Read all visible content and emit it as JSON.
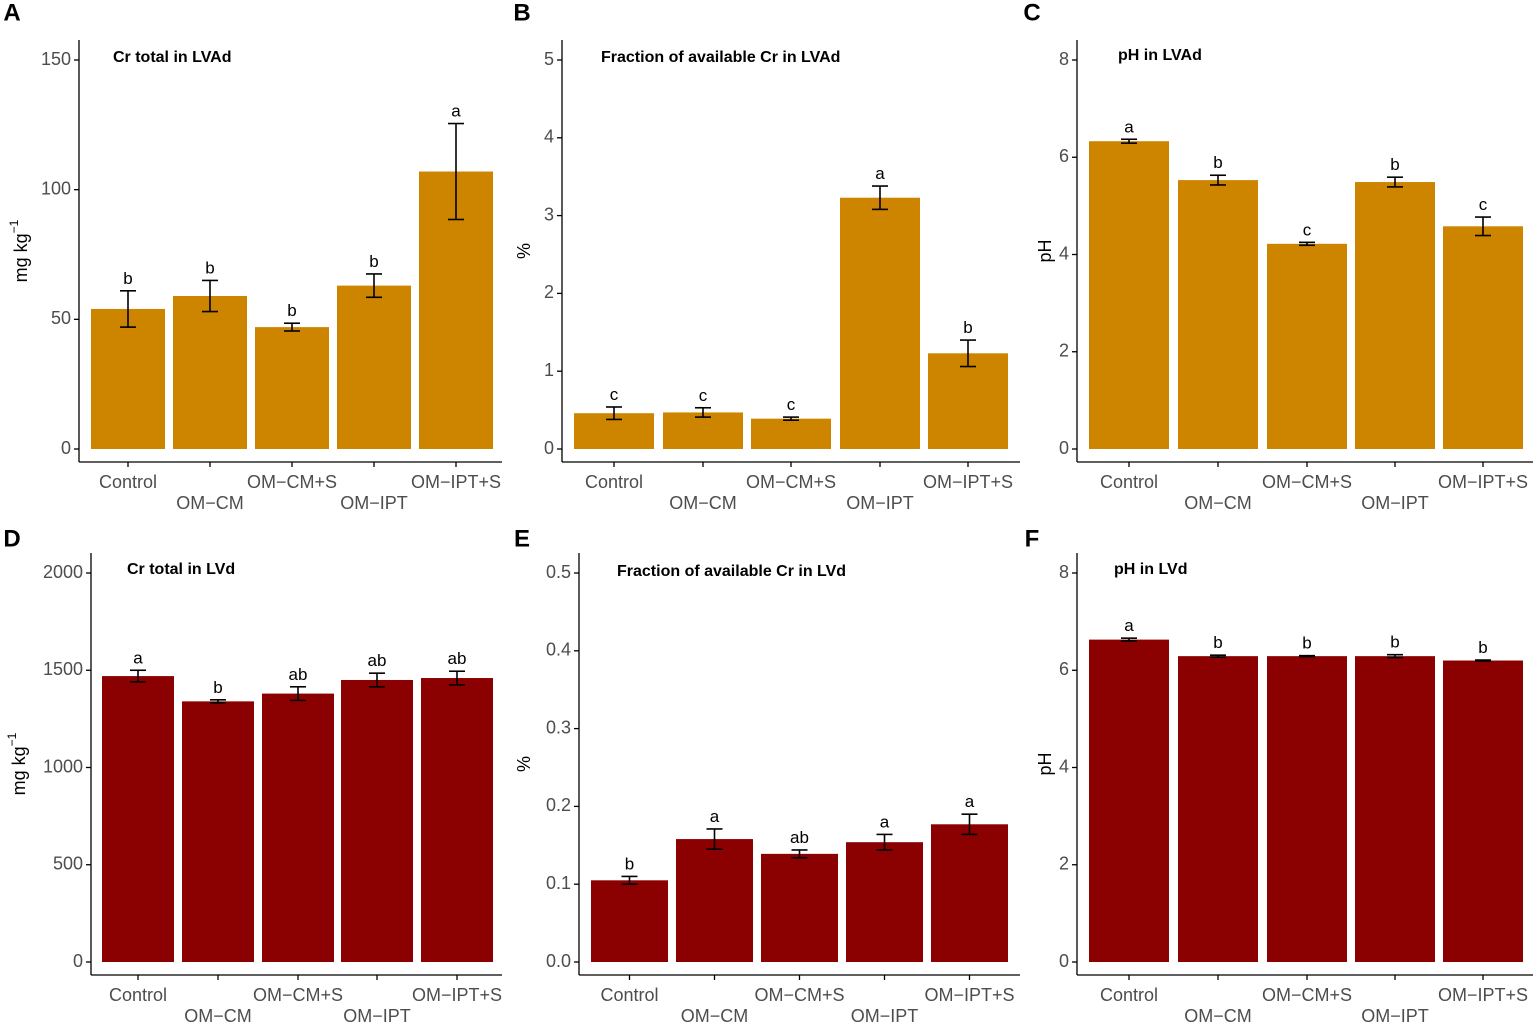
{
  "figure": {
    "colors": {
      "top_bars": "#CD8500",
      "bottom_bars": "#8B0000",
      "axis": "#000000",
      "tick_text": "#4D4D4D"
    },
    "x_categories": [
      "Control",
      "OM−CM",
      "OM−CM+S",
      "OM−IPT",
      "OM−IPT+S"
    ]
  },
  "chart_data": [
    {
      "panel_letter": "A",
      "type": "bar",
      "title": "Cr total in LVAd",
      "ylabel": "mg kg",
      "ylabel_superscript": "−1",
      "ylim": [
        0,
        150
      ],
      "yticks": [
        0,
        50,
        100,
        150
      ],
      "categories": [
        "Control",
        "OM−CM",
        "OM−CM+S",
        "OM−IPT",
        "OM−IPT+S"
      ],
      "values": [
        54,
        59,
        47,
        63,
        107
      ],
      "error": [
        7,
        6,
        1.5,
        4.5,
        18.5
      ],
      "letters": [
        "b",
        "b",
        "b",
        "b",
        "a"
      ],
      "color": "#CD8500"
    },
    {
      "panel_letter": "B",
      "type": "bar",
      "title": "Fraction of available Cr  in LVAd",
      "ylabel": "%",
      "ylabel_superscript": "",
      "ylim": [
        0,
        5
      ],
      "yticks": [
        0,
        1,
        2,
        3,
        4,
        5
      ],
      "categories": [
        "Control",
        "OM−CM",
        "OM−CM+S",
        "OM−IPT",
        "OM−IPT+S"
      ],
      "values": [
        0.46,
        0.47,
        0.39,
        3.23,
        1.23
      ],
      "error": [
        0.08,
        0.06,
        0.02,
        0.15,
        0.17
      ],
      "letters": [
        "c",
        "c",
        "c",
        "a",
        "b"
      ],
      "color": "#CD8500"
    },
    {
      "panel_letter": "C",
      "type": "bar",
      "title": "pH in LVAd",
      "ylabel": "pH",
      "ylabel_superscript": "",
      "ylim": [
        0,
        8
      ],
      "yticks": [
        0,
        2,
        4,
        6,
        8
      ],
      "categories": [
        "Control",
        "OM−CM",
        "OM−CM+S",
        "OM−IPT",
        "OM−IPT+S"
      ],
      "values": [
        6.33,
        5.53,
        4.22,
        5.49,
        4.58
      ],
      "error": [
        0.04,
        0.1,
        0.03,
        0.1,
        0.19
      ],
      "letters": [
        "a",
        "b",
        "c",
        "b",
        "c"
      ],
      "color": "#CD8500"
    },
    {
      "panel_letter": "D",
      "type": "bar",
      "title": "Cr total in LVd",
      "ylabel": "mg kg",
      "ylabel_superscript": "−1",
      "ylim": [
        0,
        2000
      ],
      "yticks": [
        0,
        500,
        1000,
        1500,
        2000
      ],
      "categories": [
        "Control",
        "OM−CM",
        "OM−CM+S",
        "OM−IPT",
        "OM−IPT+S"
      ],
      "values": [
        1470,
        1340,
        1380,
        1450,
        1460
      ],
      "error": [
        30,
        8,
        35,
        35,
        35
      ],
      "letters": [
        "a",
        "b",
        "ab",
        "ab",
        "ab"
      ],
      "color": "#8B0000"
    },
    {
      "panel_letter": "E",
      "type": "bar",
      "title": "Fraction of available Cr  in LVd",
      "ylabel": "%",
      "ylabel_superscript": "",
      "ylim": [
        0,
        0.5
      ],
      "yticks": [
        0.0,
        0.1,
        0.2,
        0.3,
        0.4,
        0.5
      ],
      "ytick_labels": [
        "0.0",
        "0.1",
        "0.2",
        "0.3",
        "0.4",
        "0.5"
      ],
      "categories": [
        "Control",
        "OM−CM",
        "OM−CM+S",
        "OM−IPT",
        "OM−IPT+S"
      ],
      "values": [
        0.105,
        0.158,
        0.139,
        0.154,
        0.177
      ],
      "error": [
        0.005,
        0.013,
        0.005,
        0.01,
        0.013
      ],
      "letters": [
        "b",
        "a",
        "ab",
        "a",
        "a"
      ],
      "color": "#8B0000"
    },
    {
      "panel_letter": "F",
      "type": "bar",
      "title": "pH in LVd",
      "ylabel": "pH",
      "ylabel_superscript": "",
      "ylim": [
        0,
        8
      ],
      "yticks": [
        0,
        2,
        4,
        6,
        8
      ],
      "categories": [
        "Control",
        "OM−CM",
        "OM−CM+S",
        "OM−IPT",
        "OM−IPT+S"
      ],
      "values": [
        6.63,
        6.29,
        6.29,
        6.29,
        6.2
      ],
      "error": [
        0.03,
        0.02,
        0.01,
        0.03,
        0.01
      ],
      "letters": [
        "a",
        "b",
        "b",
        "b",
        "b"
      ],
      "color": "#8B0000"
    }
  ]
}
